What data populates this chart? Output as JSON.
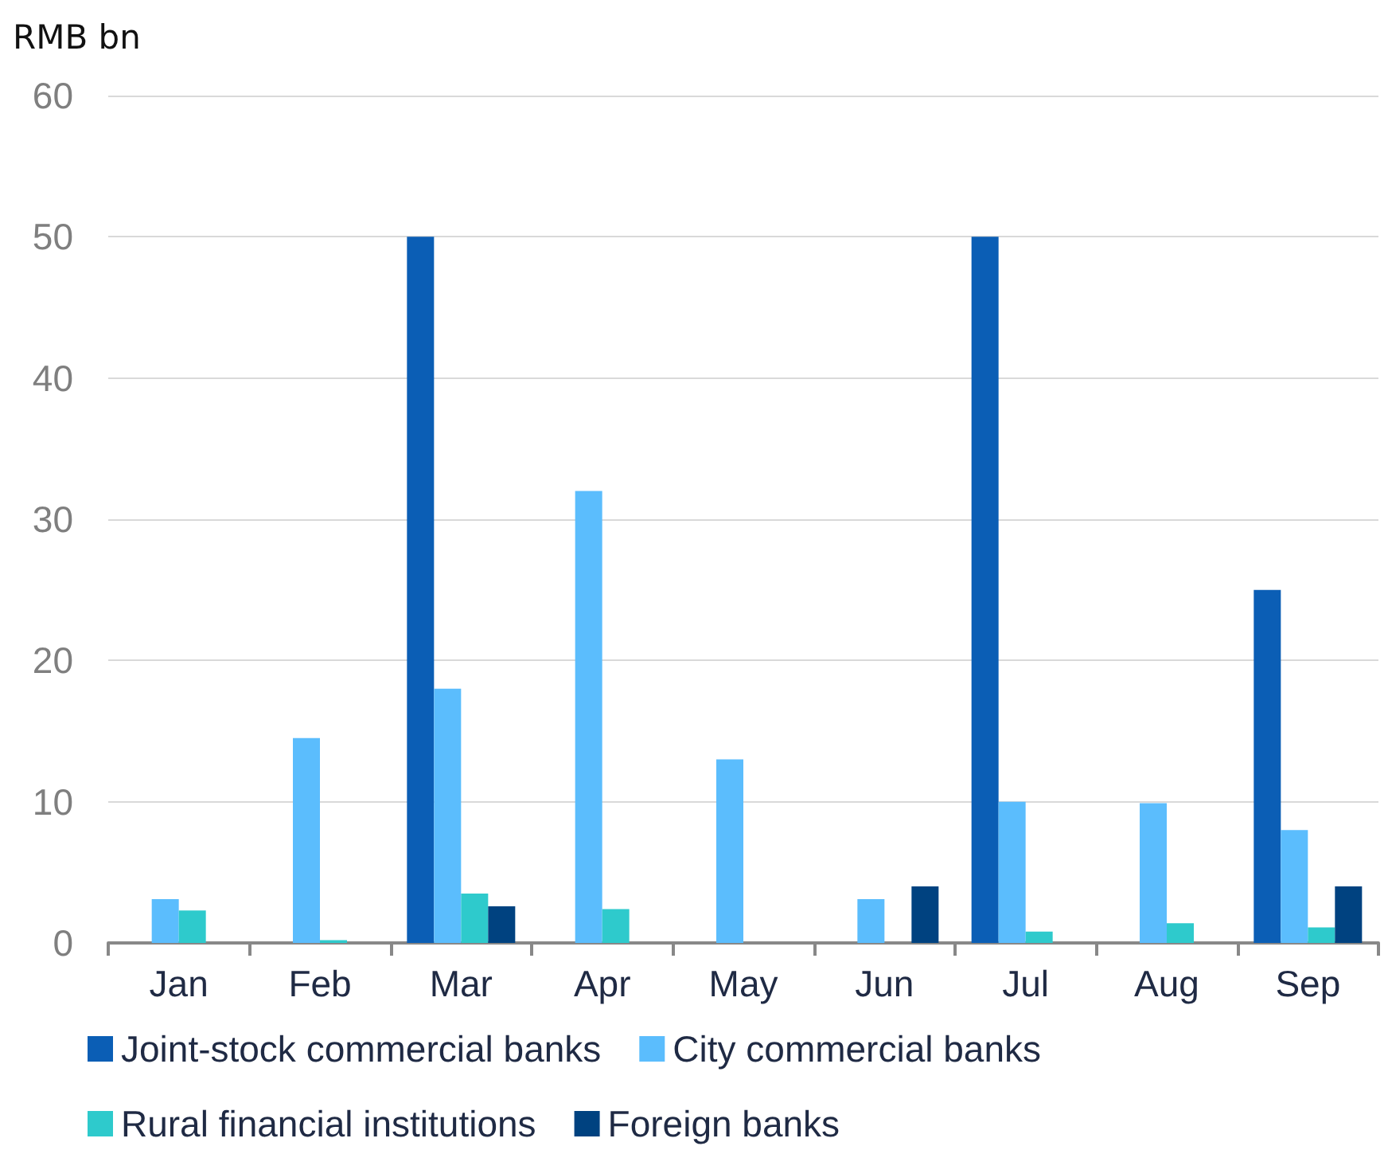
{
  "chart_data": {
    "type": "bar",
    "ylabel": "RMB bn",
    "categories": [
      "Jan",
      "Feb",
      "Mar",
      "Apr",
      "May",
      "Jun",
      "Jul",
      "Aug",
      "Sep"
    ],
    "series": [
      {
        "name": "Joint-stock commercial banks",
        "color": "#0b5eb5",
        "values": [
          null,
          null,
          50,
          null,
          null,
          null,
          50,
          null,
          25
        ]
      },
      {
        "name": "City commercial banks",
        "color": "#5bbdfd",
        "values": [
          3.1,
          14.5,
          18,
          32,
          13,
          3.1,
          10,
          9.9,
          8
        ]
      },
      {
        "name": "Rural financial institutions",
        "color": "#2ecacc",
        "values": [
          2.3,
          0.2,
          3.5,
          2.4,
          null,
          null,
          0.8,
          1.4,
          1.1
        ]
      },
      {
        "name": "Foreign banks",
        "color": "#004280",
        "values": [
          null,
          null,
          2.6,
          null,
          null,
          4,
          null,
          null,
          4
        ]
      }
    ],
    "ylim": [
      0,
      60
    ],
    "yticks": [
      0,
      10,
      20,
      30,
      40,
      50,
      60
    ],
    "grid": "y",
    "legend": "bottom"
  }
}
